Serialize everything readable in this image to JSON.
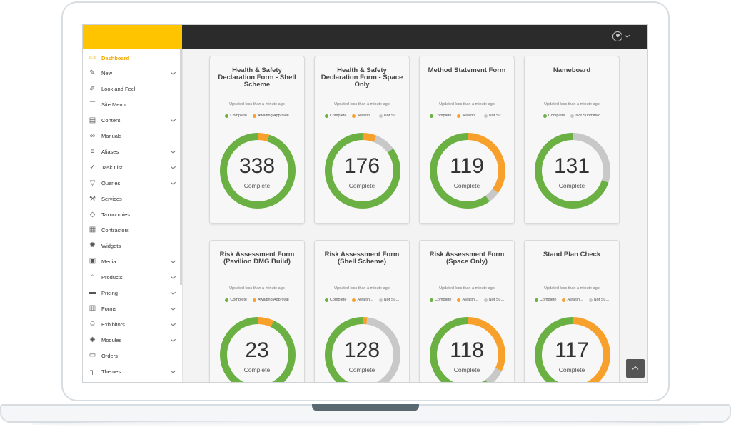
{
  "colors": {
    "complete": "#6ab043",
    "awaiting": "#f7a02c",
    "not_submitted": "#c8c8c8",
    "brand": "#ffc400",
    "topbar": "#2b2b2b"
  },
  "header": {
    "user_icon": "user-circle-icon"
  },
  "sidebar": {
    "items": [
      {
        "label": "Dashboard",
        "icon": "monitor-icon",
        "has_sub": false,
        "active": true
      },
      {
        "label": "New",
        "icon": "pencil-icon",
        "has_sub": true
      },
      {
        "label": "Look and Feel",
        "icon": "brush-icon",
        "has_sub": false
      },
      {
        "label": "Site Menu",
        "icon": "list-icon",
        "has_sub": false
      },
      {
        "label": "Content",
        "icon": "content-icon",
        "has_sub": true
      },
      {
        "label": "Manuals",
        "icon": "link-icon",
        "has_sub": false
      },
      {
        "label": "Aliases",
        "icon": "stack-icon",
        "has_sub": true
      },
      {
        "label": "Task List",
        "icon": "check-icon",
        "has_sub": true
      },
      {
        "label": "Queries",
        "icon": "filter-icon",
        "has_sub": true
      },
      {
        "label": "Services",
        "icon": "tools-icon",
        "has_sub": false
      },
      {
        "label": "Taxonomies",
        "icon": "tag-icon",
        "has_sub": false
      },
      {
        "label": "Contractors",
        "icon": "calendar-icon",
        "has_sub": false
      },
      {
        "label": "Widgets",
        "icon": "leaf-icon",
        "has_sub": false
      },
      {
        "label": "Media",
        "icon": "image-icon",
        "has_sub": true
      },
      {
        "label": "Products",
        "icon": "product-icon",
        "has_sub": true
      },
      {
        "label": "Pricing",
        "icon": "money-icon",
        "has_sub": true
      },
      {
        "label": "Forms",
        "icon": "clipboard-icon",
        "has_sub": true
      },
      {
        "label": "Exhibitors",
        "icon": "users-icon",
        "has_sub": true
      },
      {
        "label": "Modules",
        "icon": "box-icon",
        "has_sub": true
      },
      {
        "label": "Orders",
        "icon": "wallet-icon",
        "has_sub": false
      },
      {
        "label": "Themes",
        "icon": "roller-icon",
        "has_sub": true
      }
    ]
  },
  "cards": [
    {
      "title": "Health & Safety Declaration Form - Shell Scheme",
      "updated": "Updated less than a minute ago",
      "legend": [
        "Complete",
        "Awaiting Approval"
      ],
      "value": "338",
      "label": "Complete",
      "complete": 0.95,
      "awaiting": 0.05,
      "not_submitted": 0
    },
    {
      "title": "Health & Safety Declaration Form - Space Only",
      "updated": "Updated less than a minute ago",
      "legend": [
        "Complete",
        "Awaitin...",
        "Not Su..."
      ],
      "value": "176",
      "label": "Complete",
      "complete": 0.85,
      "awaiting": 0.06,
      "not_submitted": 0.09
    },
    {
      "title": "Method Statement Form",
      "updated": "Updated less than a minute ago",
      "legend": [
        "Complete",
        "Awaitin...",
        "Not Su..."
      ],
      "value": "119",
      "label": "Complete",
      "complete": 0.6,
      "awaiting": 0.35,
      "not_submitted": 0.05
    },
    {
      "title": "Nameboard",
      "updated": "Updated less than a minute ago",
      "legend": [
        "Complete",
        "Not Submitted"
      ],
      "value": "131",
      "label": "Complete",
      "complete": 0.7,
      "awaiting": 0,
      "not_submitted": 0.3
    },
    {
      "title": "Risk Assessment Form (Pavilion DMG Build)",
      "updated": "Updated less than a minute ago",
      "legend": [
        "Complete",
        "Awaiting Approval"
      ],
      "value": "23",
      "label": "Complete",
      "complete": 0.93,
      "awaiting": 0.07,
      "not_submitted": 0
    },
    {
      "title": "Risk Assessment Form (Shell Scheme)",
      "updated": "Updated less than a minute ago",
      "legend": [
        "Complete",
        "Awaitin...",
        "Not Su..."
      ],
      "value": "128",
      "label": "Complete",
      "complete": 0.45,
      "awaiting": 0.02,
      "not_submitted": 0.53
    },
    {
      "title": "Risk Assessment Form (Space Only)",
      "updated": "Updated less than a minute ago",
      "legend": [
        "Complete",
        "Awaitin...",
        "Not Su..."
      ],
      "value": "118",
      "label": "Complete",
      "complete": 0.6,
      "awaiting": 0.32,
      "not_submitted": 0.08
    },
    {
      "title": "Stand Plan Check",
      "updated": "Updated less than a minute ago",
      "legend": [
        "Complete",
        "Awaitin...",
        "Not Su..."
      ],
      "value": "117",
      "label": "Complete",
      "complete": 0.45,
      "awaiting": 0.5,
      "not_submitted": 0.05
    }
  ]
}
